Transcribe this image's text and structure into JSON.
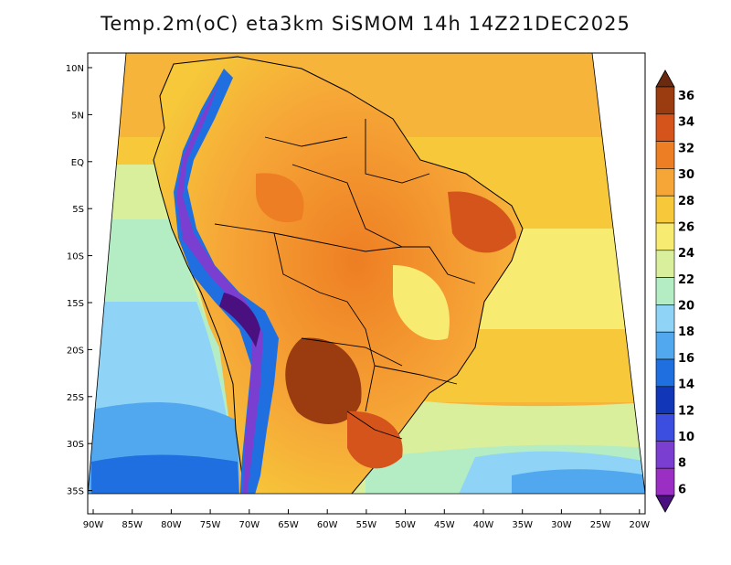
{
  "title": "Temp.2m(oC) eta3km SiSMOM 14h 14Z21DEC2025",
  "map": {
    "lat_labels": [
      "10N",
      "5N",
      "EQ",
      "5S",
      "10S",
      "15S",
      "20S",
      "25S",
      "30S",
      "35S"
    ],
    "lon_labels": [
      "90W",
      "85W",
      "80W",
      "75W",
      "70W",
      "65W",
      "60W",
      "55W",
      "50W",
      "45W",
      "40W",
      "35W",
      "30W",
      "25W",
      "20W"
    ],
    "lat_range": [
      10,
      -38
    ],
    "lon_range": [
      -90,
      -20
    ],
    "variable": "2 m temperature",
    "units": "oC"
  },
  "colorbar": {
    "labels": [
      "36",
      "34",
      "32",
      "30",
      "28",
      "26",
      "24",
      "22",
      "20",
      "18",
      "16",
      "14",
      "12",
      "10",
      "8",
      "6"
    ],
    "colors": [
      "#6b2a10",
      "#9a3c10",
      "#d4541c",
      "#ee7e23",
      "#f6a637",
      "#f6c83a",
      "#f8eb72",
      "#d9ef9c",
      "#b4ecc4",
      "#8fd4f6",
      "#52a8ee",
      "#1f6fe0",
      "#1236b8",
      "#3c4ee0",
      "#7a3fd0",
      "#9b2fc4",
      "#4a1080"
    ]
  },
  "colors": {
    "ocean_warm": "#f6b53a",
    "ocean_mild": "#f8eb72",
    "ocean_cool": "#8fd4f6",
    "ocean_cold": "#1f6fe0",
    "land_hot": "#d4541c",
    "land_warm": "#ee7e23",
    "andes": "#7a3fd0",
    "border": "#000000"
  }
}
